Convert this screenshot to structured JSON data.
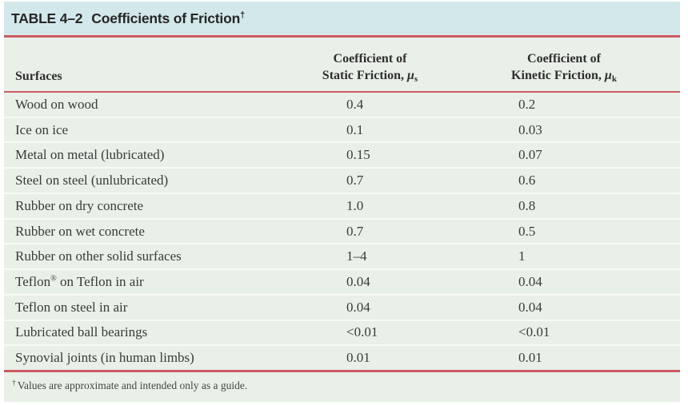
{
  "table": {
    "title": {
      "label": "TABLE 4–2",
      "subject": "Coefficients of Friction",
      "dagger": "†"
    },
    "columns": {
      "surfaces": "Surfaces",
      "static_header": {
        "line1": "Coefficient of",
        "line2": "Static Friction, ",
        "symbol": "μ",
        "subscript": "s"
      },
      "kinetic_header": {
        "line1": "Coefficient of",
        "line2": "Kinetic Friction, ",
        "symbol": "μ",
        "subscript": "k"
      }
    },
    "rows": [
      {
        "surface": "Wood on wood",
        "static": "0.4",
        "kinetic": "0.2"
      },
      {
        "surface": "Ice on ice",
        "static": "0.1",
        "kinetic": "0.03"
      },
      {
        "surface": "Metal on metal (lubricated)",
        "static": "0.15",
        "kinetic": "0.07"
      },
      {
        "surface": "Steel on steel (unlubricated)",
        "static": "0.7",
        "kinetic": "0.6"
      },
      {
        "surface": "Rubber on dry concrete",
        "static": "1.0",
        "kinetic": "0.8"
      },
      {
        "surface": "Rubber on wet concrete",
        "static": "0.7",
        "kinetic": "0.5"
      },
      {
        "surface": "Rubber on other solid surfaces",
        "static": "1–4",
        "kinetic": "1"
      },
      {
        "surface": "Teflon® on Teflon in air",
        "static": "0.04",
        "kinetic": "0.04"
      },
      {
        "surface": "Teflon on steel in air",
        "static": "0.04",
        "kinetic": "0.04"
      },
      {
        "surface": "Lubricated ball bearings",
        "static": "<0.01",
        "kinetic": "<0.01"
      },
      {
        "surface": "Synovial joints (in human limbs)",
        "static": "0.01",
        "kinetic": "0.01"
      }
    ],
    "footnote": {
      "dagger": "†",
      "text": "Values are approximate and intended only as a guide."
    }
  },
  "colors": {
    "title_bar_bg": "#d3e8ea",
    "body_bg": "#e9f0e8",
    "rule_red": "#cd5a61",
    "row_separator": "#f8fbf5",
    "text": "#3a3a3a"
  }
}
